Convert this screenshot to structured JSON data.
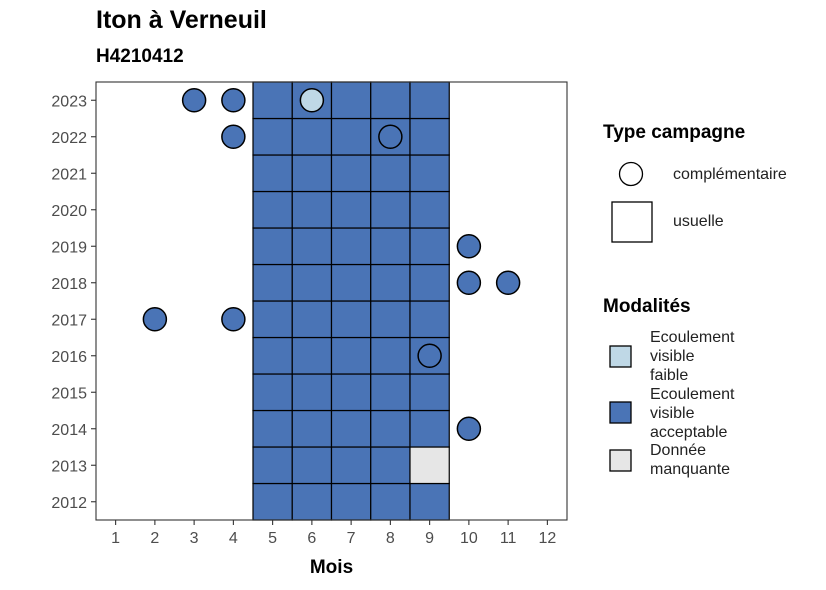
{
  "chart_data": {
    "type": "heatmap",
    "title": "Iton à Verneuil",
    "subtitle": "H4210412",
    "xlabel": "Mois",
    "ylabel": "",
    "x_ticks": [
      "1",
      "2",
      "3",
      "4",
      "5",
      "6",
      "7",
      "8",
      "9",
      "10",
      "11",
      "12"
    ],
    "y_ticks": [
      "2012",
      "2013",
      "2014",
      "2015",
      "2016",
      "2017",
      "2018",
      "2019",
      "2020",
      "2021",
      "2022",
      "2023"
    ],
    "xlim": [
      0.5,
      12.5
    ],
    "ylim": [
      2011.5,
      2023.5
    ],
    "grid": false,
    "legend_type": {
      "title": "Type campagne",
      "entries": [
        {
          "label": "complémentaire",
          "shape": "circle"
        },
        {
          "label": "usuelle",
          "shape": "square"
        }
      ]
    },
    "legend_modalites": {
      "title": "Modalités",
      "entries": [
        {
          "lines": [
            "Ecoulement",
            "visible",
            "faible"
          ],
          "color": "#bfd8e6"
        },
        {
          "lines": [
            "Ecoulement",
            "visible",
            "acceptable"
          ],
          "color": "#4a74b6"
        },
        {
          "lines": [
            "Donnée",
            "manquante"
          ],
          "color": "#e6e6e6"
        }
      ]
    },
    "colors": {
      "ecoulement_visible_faible": "#bfd8e6",
      "ecoulement_visible_acceptable": "#4a74b6",
      "donnee_manquante": "#e6e6e6"
    },
    "usuelle": [
      {
        "year": 2012,
        "month": 5,
        "m": "acceptable"
      },
      {
        "year": 2012,
        "month": 6,
        "m": "acceptable"
      },
      {
        "year": 2012,
        "month": 7,
        "m": "acceptable"
      },
      {
        "year": 2012,
        "month": 8,
        "m": "acceptable"
      },
      {
        "year": 2012,
        "month": 9,
        "m": "acceptable"
      },
      {
        "year": 2013,
        "month": 5,
        "m": "acceptable"
      },
      {
        "year": 2013,
        "month": 6,
        "m": "acceptable"
      },
      {
        "year": 2013,
        "month": 7,
        "m": "acceptable"
      },
      {
        "year": 2013,
        "month": 8,
        "m": "acceptable"
      },
      {
        "year": 2013,
        "month": 9,
        "m": "manquante"
      },
      {
        "year": 2014,
        "month": 5,
        "m": "acceptable"
      },
      {
        "year": 2014,
        "month": 6,
        "m": "acceptable"
      },
      {
        "year": 2014,
        "month": 7,
        "m": "acceptable"
      },
      {
        "year": 2014,
        "month": 8,
        "m": "acceptable"
      },
      {
        "year": 2014,
        "month": 9,
        "m": "acceptable"
      },
      {
        "year": 2015,
        "month": 5,
        "m": "acceptable"
      },
      {
        "year": 2015,
        "month": 6,
        "m": "acceptable"
      },
      {
        "year": 2015,
        "month": 7,
        "m": "acceptable"
      },
      {
        "year": 2015,
        "month": 8,
        "m": "acceptable"
      },
      {
        "year": 2015,
        "month": 9,
        "m": "acceptable"
      },
      {
        "year": 2016,
        "month": 5,
        "m": "acceptable"
      },
      {
        "year": 2016,
        "month": 6,
        "m": "acceptable"
      },
      {
        "year": 2016,
        "month": 7,
        "m": "acceptable"
      },
      {
        "year": 2016,
        "month": 8,
        "m": "acceptable"
      },
      {
        "year": 2016,
        "month": 9,
        "m": "acceptable"
      },
      {
        "year": 2017,
        "month": 5,
        "m": "acceptable"
      },
      {
        "year": 2017,
        "month": 6,
        "m": "acceptable"
      },
      {
        "year": 2017,
        "month": 7,
        "m": "acceptable"
      },
      {
        "year": 2017,
        "month": 8,
        "m": "acceptable"
      },
      {
        "year": 2017,
        "month": 9,
        "m": "acceptable"
      },
      {
        "year": 2018,
        "month": 5,
        "m": "acceptable"
      },
      {
        "year": 2018,
        "month": 6,
        "m": "acceptable"
      },
      {
        "year": 2018,
        "month": 7,
        "m": "acceptable"
      },
      {
        "year": 2018,
        "month": 8,
        "m": "acceptable"
      },
      {
        "year": 2018,
        "month": 9,
        "m": "acceptable"
      },
      {
        "year": 2019,
        "month": 5,
        "m": "acceptable"
      },
      {
        "year": 2019,
        "month": 6,
        "m": "acceptable"
      },
      {
        "year": 2019,
        "month": 7,
        "m": "acceptable"
      },
      {
        "year": 2019,
        "month": 8,
        "m": "acceptable"
      },
      {
        "year": 2019,
        "month": 9,
        "m": "acceptable"
      },
      {
        "year": 2020,
        "month": 5,
        "m": "acceptable"
      },
      {
        "year": 2020,
        "month": 6,
        "m": "acceptable"
      },
      {
        "year": 2020,
        "month": 7,
        "m": "acceptable"
      },
      {
        "year": 2020,
        "month": 8,
        "m": "acceptable"
      },
      {
        "year": 2020,
        "month": 9,
        "m": "acceptable"
      },
      {
        "year": 2021,
        "month": 5,
        "m": "acceptable"
      },
      {
        "year": 2021,
        "month": 6,
        "m": "acceptable"
      },
      {
        "year": 2021,
        "month": 7,
        "m": "acceptable"
      },
      {
        "year": 2021,
        "month": 8,
        "m": "acceptable"
      },
      {
        "year": 2021,
        "month": 9,
        "m": "acceptable"
      },
      {
        "year": 2022,
        "month": 5,
        "m": "acceptable"
      },
      {
        "year": 2022,
        "month": 6,
        "m": "acceptable"
      },
      {
        "year": 2022,
        "month": 7,
        "m": "acceptable"
      },
      {
        "year": 2022,
        "month": 8,
        "m": "acceptable"
      },
      {
        "year": 2022,
        "month": 9,
        "m": "acceptable"
      },
      {
        "year": 2023,
        "month": 5,
        "m": "acceptable"
      },
      {
        "year": 2023,
        "month": 6,
        "m": "acceptable"
      },
      {
        "year": 2023,
        "month": 7,
        "m": "acceptable"
      },
      {
        "year": 2023,
        "month": 8,
        "m": "acceptable"
      },
      {
        "year": 2023,
        "month": 9,
        "m": "acceptable"
      }
    ],
    "complementaire": [
      {
        "year": 2023,
        "month": 3,
        "m": "acceptable"
      },
      {
        "year": 2023,
        "month": 4,
        "m": "acceptable"
      },
      {
        "year": 2023,
        "month": 6,
        "m": "faible"
      },
      {
        "year": 2022,
        "month": 4,
        "m": "acceptable"
      },
      {
        "year": 2022,
        "month": 8,
        "m": "acceptable"
      },
      {
        "year": 2019,
        "month": 10,
        "m": "acceptable"
      },
      {
        "year": 2018,
        "month": 10,
        "m": "acceptable"
      },
      {
        "year": 2018,
        "month": 11,
        "m": "acceptable"
      },
      {
        "year": 2017,
        "month": 2,
        "m": "acceptable"
      },
      {
        "year": 2017,
        "month": 4,
        "m": "acceptable"
      },
      {
        "year": 2016,
        "month": 9,
        "m": "acceptable"
      },
      {
        "year": 2014,
        "month": 10,
        "m": "acceptable"
      }
    ]
  }
}
